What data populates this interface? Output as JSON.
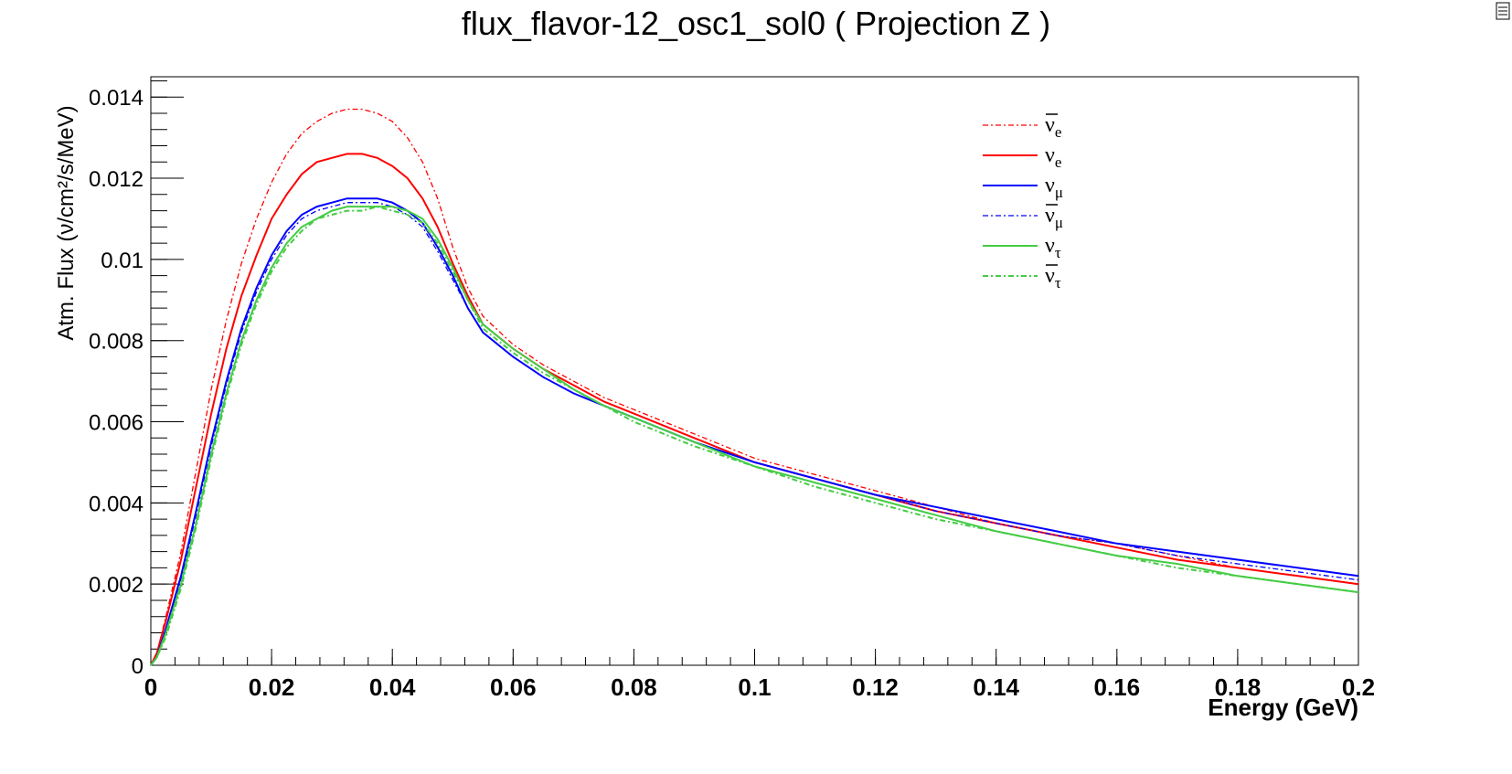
{
  "chart_data": {
    "type": "line",
    "title": "flux_flavor-12_osc1_sol0 ( Projection Z )",
    "xlabel": "Energy (GeV)",
    "ylabel": "Atm. Flux (ν/cm²/s/MeV)",
    "xlim": [
      0,
      0.2
    ],
    "ylim": [
      0,
      0.0145
    ],
    "x_ticks": [
      0,
      0.02,
      0.04,
      0.06,
      0.08,
      0.1,
      0.12,
      0.14,
      0.16,
      0.18,
      0.2
    ],
    "x_tick_labels": [
      "0",
      "0.02",
      "0.04",
      "0.06",
      "0.08",
      "0.1",
      "0.12",
      "0.14",
      "0.16",
      "0.18",
      "0.2"
    ],
    "y_ticks": [
      0,
      0.002,
      0.004,
      0.006,
      0.008,
      0.01,
      0.012,
      0.014
    ],
    "y_tick_labels": [
      "0",
      "0.002",
      "0.004",
      "0.006",
      "0.008",
      "0.01",
      "0.012",
      "0.014"
    ],
    "grid": false,
    "legend_position": "top-right",
    "x": [
      0,
      0.001,
      0.0025,
      0.005,
      0.0075,
      0.01,
      0.0125,
      0.015,
      0.0175,
      0.02,
      0.0225,
      0.025,
      0.0275,
      0.03,
      0.0325,
      0.035,
      0.0375,
      0.04,
      0.0425,
      0.045,
      0.0475,
      0.05,
      0.0525,
      0.055,
      0.06,
      0.065,
      0.07,
      0.075,
      0.08,
      0.09,
      0.1,
      0.11,
      0.12,
      0.13,
      0.14,
      0.15,
      0.16,
      0.17,
      0.18,
      0.19,
      0.2
    ],
    "series": [
      {
        "name": "ν̄e",
        "color": "#ff0000",
        "style": "dashdot",
        "width": 1.3,
        "values": [
          0,
          0.0003,
          0.0012,
          0.0028,
          0.0048,
          0.0068,
          0.0085,
          0.0099,
          0.011,
          0.0119,
          0.0126,
          0.0131,
          0.0134,
          0.0136,
          0.0137,
          0.0137,
          0.0136,
          0.0134,
          0.013,
          0.0124,
          0.0115,
          0.0103,
          0.0093,
          0.0086,
          0.0079,
          0.0074,
          0.007,
          0.0066,
          0.0063,
          0.0057,
          0.0051,
          0.0047,
          0.0043,
          0.0039,
          0.0035,
          0.0032,
          0.003,
          0.0027,
          0.0024,
          0.0022,
          0.002
        ]
      },
      {
        "name": "νe",
        "color": "#ff0000",
        "style": "solid",
        "width": 2,
        "values": [
          0,
          0.0003,
          0.0011,
          0.0026,
          0.0044,
          0.0062,
          0.0078,
          0.0091,
          0.0101,
          0.011,
          0.0116,
          0.0121,
          0.0124,
          0.0125,
          0.0126,
          0.0126,
          0.0125,
          0.0123,
          0.012,
          0.0115,
          0.0108,
          0.0099,
          0.0091,
          0.0084,
          0.0078,
          0.0073,
          0.0069,
          0.0065,
          0.0062,
          0.0056,
          0.005,
          0.0046,
          0.0042,
          0.0038,
          0.0035,
          0.0032,
          0.0029,
          0.0026,
          0.0024,
          0.0022,
          0.002
        ]
      },
      {
        "name": "νμ",
        "color": "#0000ff",
        "style": "solid",
        "width": 2,
        "values": [
          0,
          0.0002,
          0.0009,
          0.0022,
          0.0038,
          0.0055,
          0.007,
          0.0083,
          0.0093,
          0.0101,
          0.0107,
          0.0111,
          0.0113,
          0.0114,
          0.0115,
          0.0115,
          0.0115,
          0.0114,
          0.0112,
          0.0109,
          0.0103,
          0.0096,
          0.0088,
          0.0082,
          0.0076,
          0.0071,
          0.0067,
          0.0064,
          0.0061,
          0.0055,
          0.005,
          0.0046,
          0.0042,
          0.0039,
          0.0036,
          0.0033,
          0.003,
          0.0028,
          0.0026,
          0.0024,
          0.0022
        ]
      },
      {
        "name": "ν̄μ",
        "color": "#0000ff",
        "style": "dashdot",
        "width": 1.3,
        "values": [
          0,
          0.0002,
          0.0008,
          0.0021,
          0.0037,
          0.0054,
          0.0069,
          0.0082,
          0.0092,
          0.01,
          0.0106,
          0.011,
          0.0112,
          0.0113,
          0.0114,
          0.0114,
          0.0114,
          0.0113,
          0.0111,
          0.0108,
          0.0102,
          0.0095,
          0.0088,
          0.0082,
          0.0076,
          0.0071,
          0.0067,
          0.0064,
          0.0061,
          0.0055,
          0.005,
          0.0046,
          0.0042,
          0.0038,
          0.0035,
          0.0032,
          0.003,
          0.0027,
          0.0025,
          0.0023,
          0.0021
        ]
      },
      {
        "name": "ντ",
        "color": "#44cc44",
        "style": "solid",
        "width": 2,
        "values": [
          0,
          0.0002,
          0.0008,
          0.002,
          0.0035,
          0.0052,
          0.0067,
          0.008,
          0.009,
          0.0098,
          0.0104,
          0.0108,
          0.011,
          0.0112,
          0.0113,
          0.0113,
          0.0113,
          0.0113,
          0.0112,
          0.011,
          0.0105,
          0.0098,
          0.009,
          0.0084,
          0.0078,
          0.0073,
          0.0068,
          0.0064,
          0.0061,
          0.0055,
          0.0049,
          0.0045,
          0.0041,
          0.0037,
          0.0033,
          0.003,
          0.0027,
          0.0025,
          0.0022,
          0.002,
          0.0018
        ]
      },
      {
        "name": "ν̄τ",
        "color": "#44cc44",
        "style": "dashdot",
        "width": 2,
        "values": [
          0,
          0.0002,
          0.0007,
          0.0019,
          0.0034,
          0.0051,
          0.0066,
          0.0079,
          0.0089,
          0.0097,
          0.0103,
          0.0107,
          0.011,
          0.0111,
          0.0112,
          0.0112,
          0.0113,
          0.0112,
          0.0111,
          0.0109,
          0.0104,
          0.0097,
          0.009,
          0.0083,
          0.0077,
          0.0072,
          0.0068,
          0.0064,
          0.006,
          0.0054,
          0.0049,
          0.0044,
          0.004,
          0.0036,
          0.0033,
          0.003,
          0.0027,
          0.0024,
          0.0022,
          0.002,
          0.0018
        ]
      }
    ],
    "legend": [
      {
        "base": "ν",
        "sub": "e",
        "bar": true
      },
      {
        "base": "ν",
        "sub": "e",
        "bar": false
      },
      {
        "base": "ν",
        "sub": "μ",
        "bar": false
      },
      {
        "base": "ν",
        "sub": "μ",
        "bar": true
      },
      {
        "base": "ν",
        "sub": "τ",
        "bar": false
      },
      {
        "base": "ν",
        "sub": "τ",
        "bar": true
      }
    ]
  }
}
